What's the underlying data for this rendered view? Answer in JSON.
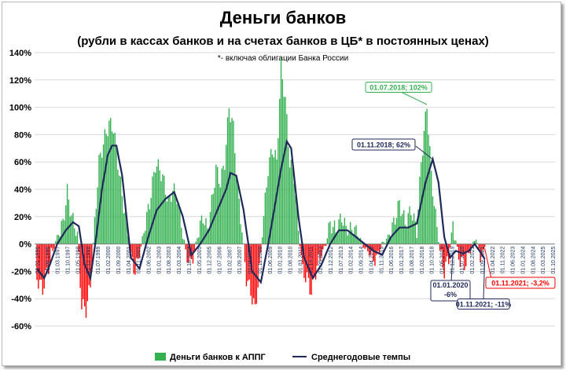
{
  "chart_data": {
    "type": "bar",
    "title": "Деньги банков",
    "subtitle": "(рубли в кассах банков и на счетах банков в ЦБ* в постоянных ценах)",
    "note": "*- включая облигации Банка России",
    "ylim": [
      -60,
      140
    ],
    "yticks": [
      "-60%",
      "-40%",
      "-20%",
      "0%",
      "20%",
      "40%",
      "60%",
      "80%",
      "100%",
      "120%",
      "140%"
    ],
    "x_start": "01.01.1996",
    "x_end": "01.10.2025",
    "x_tick_labels": [
      "01.01.1996",
      "01.08.1996",
      "01.03.1997",
      "01.10.1997",
      "01.05.1998",
      "01.12.1998",
      "01.07.1999",
      "01.02.2000",
      "01.09.2000",
      "01.04.2001",
      "01.11.2001",
      "01.06.2002",
      "01.01.2003",
      "01.08.2003",
      "01.03.2004",
      "01.10.2004",
      "01.05.2005",
      "01.12.2005",
      "01.07.2006",
      "01.02.2007",
      "01.09.2007",
      "01.04.2008",
      "01.11.2008",
      "01.06.2009",
      "01.01.2010",
      "01.08.2010",
      "01.03.2011",
      "01.10.2011",
      "01.05.2012",
      "01.12.2012",
      "01.07.2013",
      "01.02.2014",
      "01.09.2014",
      "01.04.2015",
      "01.11.2015",
      "01.06.2016",
      "01.01.2017",
      "01.08.2017",
      "01.03.2018",
      "01.10.2018",
      "01.05.2019",
      "01.12.2019",
      "01.07.2020",
      "01.02.2021",
      "01.09.2021",
      "01.04.2022",
      "01.11.2022",
      "01.06.2023",
      "01.01.2024",
      "01.08.2024",
      "01.03.2025",
      "01.10.2025"
    ],
    "series": [
      {
        "name": "Деньги банков к АППГ",
        "color": "#33b050",
        "negative_color": "#ff0000",
        "anchors": [
          [
            "1996-01",
            -25
          ],
          [
            "1996-05",
            -33
          ],
          [
            "1996-08",
            -20
          ],
          [
            "1996-12",
            -5
          ],
          [
            "1997-03",
            5
          ],
          [
            "1997-07",
            15
          ],
          [
            "1997-10",
            38
          ],
          [
            "1998-01",
            20
          ],
          [
            "1998-05",
            8
          ],
          [
            "1998-08",
            -45
          ],
          [
            "1998-11",
            -48
          ],
          [
            "1999-02",
            -30
          ],
          [
            "1999-05",
            15
          ],
          [
            "1999-08",
            60
          ],
          [
            "1999-12",
            78
          ],
          [
            "2000-03",
            88
          ],
          [
            "2000-06",
            85
          ],
          [
            "2000-09",
            60
          ],
          [
            "2000-12",
            35
          ],
          [
            "2001-03",
            15
          ],
          [
            "2001-06",
            -10
          ],
          [
            "2001-09",
            -20
          ],
          [
            "2001-12",
            -8
          ],
          [
            "2002-03",
            10
          ],
          [
            "2002-07",
            30
          ],
          [
            "2002-11",
            58
          ],
          [
            "2003-02",
            55
          ],
          [
            "2003-05",
            45
          ],
          [
            "2003-08",
            30
          ],
          [
            "2003-11",
            40
          ],
          [
            "2004-02",
            35
          ],
          [
            "2004-05",
            15
          ],
          [
            "2004-08",
            -5
          ],
          [
            "2004-11",
            -15
          ],
          [
            "2005-02",
            -5
          ],
          [
            "2005-05",
            10
          ],
          [
            "2005-08",
            20
          ],
          [
            "2005-11",
            10
          ],
          [
            "2006-02",
            30
          ],
          [
            "2006-05",
            55
          ],
          [
            "2006-08",
            45
          ],
          [
            "2006-11",
            60
          ],
          [
            "2007-02",
            100
          ],
          [
            "2007-05",
            85
          ],
          [
            "2007-08",
            40
          ],
          [
            "2007-11",
            10
          ],
          [
            "2008-02",
            -25
          ],
          [
            "2008-05",
            -35
          ],
          [
            "2008-08",
            -48
          ],
          [
            "2008-11",
            -20
          ],
          [
            "2009-02",
            20
          ],
          [
            "2009-05",
            55
          ],
          [
            "2009-08",
            70
          ],
          [
            "2009-11",
            60
          ],
          [
            "2010-02",
            130
          ],
          [
            "2010-05",
            105
          ],
          [
            "2010-08",
            60
          ],
          [
            "2010-11",
            50
          ],
          [
            "2011-02",
            10
          ],
          [
            "2011-05",
            -20
          ],
          [
            "2011-08",
            -25
          ],
          [
            "2011-11",
            -35
          ],
          [
            "2012-02",
            -20
          ],
          [
            "2012-05",
            -10
          ],
          [
            "2012-09",
            0
          ],
          [
            "2012-12",
            15
          ],
          [
            "2013-04",
            10
          ],
          [
            "2013-08",
            20
          ],
          [
            "2013-12",
            8
          ],
          [
            "2014-04",
            12
          ],
          [
            "2014-08",
            5
          ],
          [
            "2014-12",
            -3
          ],
          [
            "2015-04",
            -8
          ],
          [
            "2015-08",
            -12
          ],
          [
            "2015-12",
            0
          ],
          [
            "2016-04",
            5
          ],
          [
            "2016-08",
            15
          ],
          [
            "2016-12",
            30
          ],
          [
            "2017-04",
            15
          ],
          [
            "2017-08",
            25
          ],
          [
            "2017-12",
            10
          ],
          [
            "2018-03",
            60
          ],
          [
            "2018-07",
            102
          ],
          [
            "2018-10",
            50
          ],
          [
            "2019-01",
            20
          ],
          [
            "2019-04",
            -5
          ],
          [
            "2019-07",
            -20
          ],
          [
            "2019-10",
            -10
          ],
          [
            "2020-01",
            15
          ],
          [
            "2020-05",
            -10
          ],
          [
            "2020-09",
            -15
          ],
          [
            "2021-01",
            -5
          ],
          [
            "2021-05",
            5
          ],
          [
            "2021-08",
            -10
          ],
          [
            "2021-11",
            -3.2
          ]
        ]
      },
      {
        "name": "Среднегодовые темпы",
        "color": "#1f2a5a",
        "anchors": [
          [
            "1996-01",
            -18
          ],
          [
            "1996-06",
            -25
          ],
          [
            "1996-10",
            -15
          ],
          [
            "1997-03",
            0
          ],
          [
            "1997-09",
            10
          ],
          [
            "1998-02",
            16
          ],
          [
            "1998-06",
            13
          ],
          [
            "1998-10",
            -15
          ],
          [
            "1999-02",
            -25
          ],
          [
            "1999-06",
            5
          ],
          [
            "1999-10",
            40
          ],
          [
            "2000-02",
            65
          ],
          [
            "2000-05",
            72
          ],
          [
            "2000-08",
            72
          ],
          [
            "2000-12",
            50
          ],
          [
            "2001-06",
            -10
          ],
          [
            "2001-12",
            -18
          ],
          [
            "2002-06",
            5
          ],
          [
            "2002-12",
            25
          ],
          [
            "2003-06",
            33
          ],
          [
            "2003-12",
            38
          ],
          [
            "2004-06",
            20
          ],
          [
            "2004-12",
            -8
          ],
          [
            "2005-06",
            0
          ],
          [
            "2005-12",
            10
          ],
          [
            "2006-06",
            25
          ],
          [
            "2006-12",
            40
          ],
          [
            "2007-03",
            52
          ],
          [
            "2007-07",
            50
          ],
          [
            "2007-12",
            25
          ],
          [
            "2008-06",
            -20
          ],
          [
            "2008-12",
            -28
          ],
          [
            "2009-06",
            5
          ],
          [
            "2009-10",
            30
          ],
          [
            "2010-02",
            55
          ],
          [
            "2010-06",
            75
          ],
          [
            "2010-09",
            70
          ],
          [
            "2011-02",
            20
          ],
          [
            "2011-06",
            -10
          ],
          [
            "2011-12",
            -25
          ],
          [
            "2012-06",
            -15
          ],
          [
            "2012-12",
            0
          ],
          [
            "2013-06",
            10
          ],
          [
            "2013-12",
            10
          ],
          [
            "2014-06",
            5
          ],
          [
            "2014-12",
            0
          ],
          [
            "2015-06",
            -5
          ],
          [
            "2015-12",
            -8
          ],
          [
            "2016-06",
            5
          ],
          [
            "2016-12",
            12
          ],
          [
            "2017-06",
            12
          ],
          [
            "2017-12",
            15
          ],
          [
            "2018-06",
            45
          ],
          [
            "2018-11",
            62
          ],
          [
            "2019-03",
            45
          ],
          [
            "2019-07",
            5
          ],
          [
            "2019-11",
            -10
          ],
          [
            "2020-03",
            -5
          ],
          [
            "2020-08",
            -7
          ],
          [
            "2020-12",
            -5
          ],
          [
            "2021-04",
            0
          ],
          [
            "2021-08",
            -6
          ],
          [
            "2021-11",
            -11
          ]
        ]
      }
    ],
    "annotations": [
      {
        "text": "01.07.2018; 102%",
        "color": "#33b050"
      },
      {
        "text": "01.11.2018; 62%",
        "color": "#1f2a5a"
      },
      {
        "text": "01.01.2020",
        "text2": "-6%",
        "color": "#1f2a5a"
      },
      {
        "text": "01.11.2021; -11%",
        "color": "#1f2a5a"
      },
      {
        "text": "01.11.2021; -3,2%",
        "color": "#ff0000"
      }
    ],
    "legend": {
      "position": "bottom",
      "items": [
        "Деньги банков к АППГ",
        "Среднегодовые темпы"
      ]
    }
  }
}
